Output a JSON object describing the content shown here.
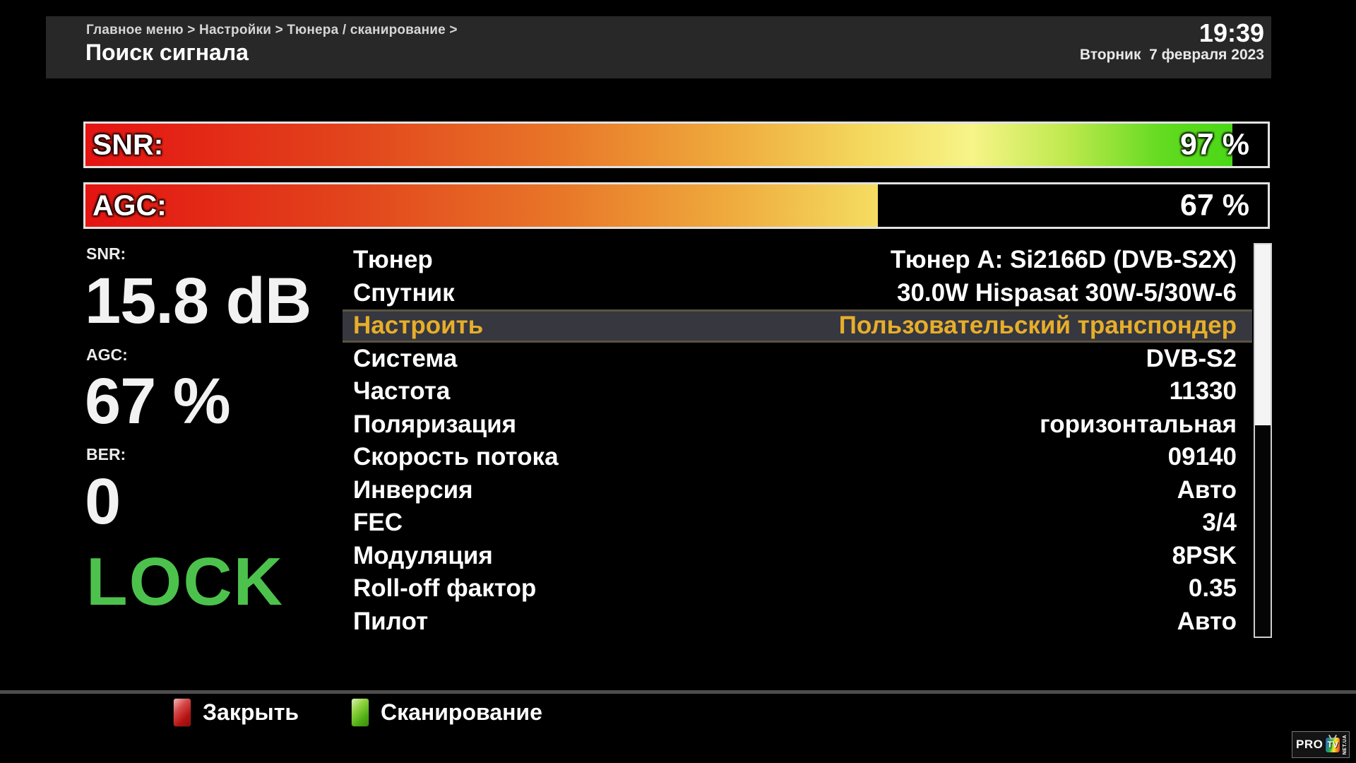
{
  "header": {
    "breadcrumb": "Главное меню > Настройки > Тюнера / сканирование >",
    "title": "Поиск сигнала",
    "time": "19:39",
    "date": "Вторник  7 февраля 2023"
  },
  "bars": [
    {
      "id": "snr",
      "label": "SNR:",
      "value": 97,
      "value_text": "97 %"
    },
    {
      "id": "agc",
      "label": "AGC:",
      "value": 67,
      "value_text": "67 %"
    }
  ],
  "stats": [
    {
      "label": "SNR:",
      "value": "15.8 dB"
    },
    {
      "label": "AGC:",
      "value": "67 %"
    },
    {
      "label": "BER:",
      "value": "0"
    }
  ],
  "lock": {
    "text": "LOCK"
  },
  "menu": {
    "selected_index": 2,
    "items": [
      {
        "label": "Тюнер",
        "value": "Тюнер A: Si2166D (DVB-S2X)"
      },
      {
        "label": "Спутник",
        "value": "30.0W Hispasat 30W-5/30W-6"
      },
      {
        "label": "Настроить",
        "value": "Пользовательский транспондер"
      },
      {
        "label": "Система",
        "value": "DVB-S2"
      },
      {
        "label": "Частота",
        "value": "11330"
      },
      {
        "label": "Поляризация",
        "value": "горизонтальная"
      },
      {
        "label": "Скорость потока",
        "value": "09140"
      },
      {
        "label": "Инверсия",
        "value": "Авто"
      },
      {
        "label": "FEC",
        "value": "3/4"
      },
      {
        "label": "Модуляция",
        "value": "8PSK"
      },
      {
        "label": "Roll-off фактор",
        "value": "0.35"
      },
      {
        "label": "Пилот",
        "value": "Авто"
      }
    ]
  },
  "footer": {
    "buttons": [
      {
        "key_color": "red",
        "label": "Закрыть"
      },
      {
        "key_color": "green",
        "label": "Сканирование"
      }
    ]
  },
  "logo": {
    "pro": "PRO",
    "tv": "TV",
    "net": "NET.UA"
  },
  "colors": {
    "background": "#000000",
    "header_bg": "#282828",
    "lock_green": "#4cc24c",
    "highlight_bg": "#36373f",
    "highlight_border": "#5a5340",
    "highlight_text": "#e7ae2a",
    "bar_gradient": [
      "#e41312",
      "#f7f488",
      "#3cd611"
    ],
    "red_key": "#b31212",
    "green_key": "#4fae14",
    "scroll_thumb": "#f4f4f4"
  }
}
